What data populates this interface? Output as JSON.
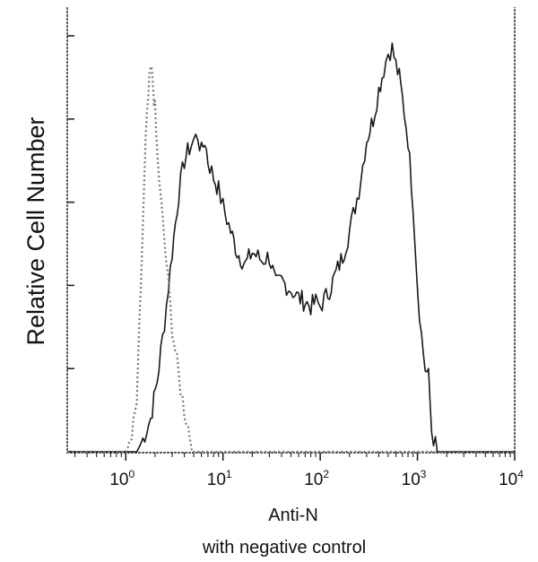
{
  "chart_data": {
    "type": "line",
    "title": "",
    "xlabel": "Anti-N",
    "ylabel": "Relative Cell Number",
    "caption": "with negative control",
    "x_scale": "log",
    "xlim": [
      0.25,
      10000
    ],
    "ylim": [
      0,
      100
    ],
    "grid": false,
    "legend": "none",
    "x_ticks": [
      {
        "base": "10",
        "exp": "0",
        "value": 1
      },
      {
        "base": "10",
        "exp": "1",
        "value": 10
      },
      {
        "base": "10",
        "exp": "2",
        "value": 100
      },
      {
        "base": "10",
        "exp": "3",
        "value": 1000
      },
      {
        "base": "10",
        "exp": "4",
        "value": 10000
      }
    ],
    "y_tick_values": [
      0,
      20,
      40,
      60,
      80,
      100
    ],
    "series": [
      {
        "style": "solid",
        "color": "#1a1a1a",
        "x": [
          0.25,
          1.3,
          1.5,
          1.8,
          2.1,
          2.5,
          3.0,
          3.5,
          4.0,
          4.5,
          5.0,
          5.5,
          6.0,
          6.5,
          7.0,
          8.0,
          9.0,
          10,
          12,
          14,
          17,
          20,
          25,
          30,
          35,
          40,
          45,
          50,
          55,
          60,
          70,
          80,
          90,
          100,
          120,
          140,
          170,
          200,
          250,
          300,
          350,
          400,
          450,
          500,
          550,
          600,
          650,
          700,
          800,
          900,
          1000,
          1100,
          1200,
          1300,
          1400,
          1600,
          10000
        ],
        "y": [
          0,
          0,
          3,
          8,
          17,
          31,
          48,
          62,
          70,
          73,
          75,
          76,
          72,
          75,
          70,
          66,
          63,
          59,
          53,
          48,
          45,
          48,
          46,
          47,
          40,
          41,
          40,
          39,
          38,
          37,
          36,
          35,
          36,
          35,
          38,
          42,
          47,
          53,
          63,
          75,
          80,
          87,
          92,
          96,
          97,
          93,
          90,
          85,
          75,
          60,
          40,
          28,
          20,
          18,
          5,
          0,
          0
        ]
      },
      {
        "style": "dotted",
        "color": "#777777",
        "x": [
          0.25,
          1.0,
          1.15,
          1.3,
          1.4,
          1.5,
          1.6,
          1.7,
          1.8,
          1.9,
          2.0,
          2.1,
          2.3,
          2.6,
          3.0,
          3.5,
          4.0,
          5.0,
          10000
        ],
        "y": [
          0,
          0,
          3,
          12,
          33,
          55,
          74,
          85,
          92,
          89,
          82,
          72,
          60,
          46,
          30,
          18,
          10,
          0,
          0
        ]
      }
    ]
  }
}
